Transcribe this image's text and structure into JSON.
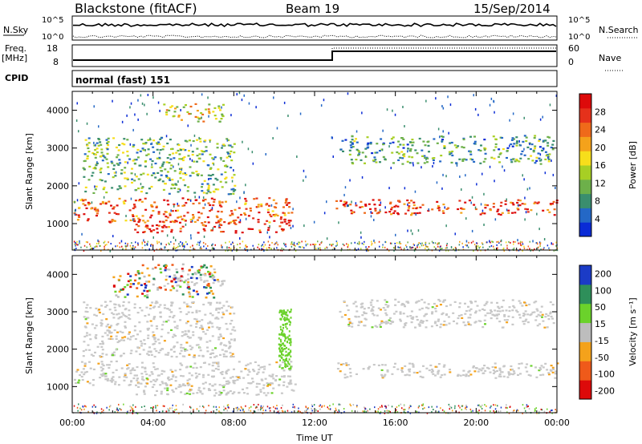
{
  "header": {
    "station": "Blackstone (fitACF)",
    "beam": "Beam 19",
    "date": "15/Sep/2014"
  },
  "top_panel": {
    "left_label": "N.Sky",
    "left_ticks": [
      "10^5",
      "10^0"
    ],
    "right_ticks": [
      "10^5",
      "10^0"
    ],
    "right_label": "N.Search"
  },
  "freq_panel": {
    "left_label_1": "Freq.",
    "left_label_2": "[MHz]",
    "left_ticks": [
      "18",
      "8"
    ],
    "right_ticks": [
      "60",
      "0"
    ],
    "right_label": "Nave",
    "cpid_label": "CPID",
    "mode": "normal (fast) 151"
  },
  "colors": {
    "scale": [
      "#0a2bd6",
      "#2468c6",
      "#3a8e6e",
      "#6db04a",
      "#a7cf24",
      "#f7de1b",
      "#f4a21b",
      "#ef6a1a",
      "#e5311b",
      "#dd0a0a"
    ],
    "velocity": [
      "#dd0a0a",
      "#ef5a1a",
      "#f4a21b",
      "#bdbdbd",
      "#6bd22b",
      "#2e8f5a",
      "#1b3bc6"
    ],
    "ground": "#c8c8c8"
  },
  "chart_data": [
    {
      "type": "heatmap",
      "name": "power",
      "ylabel": "Slant Range [km]",
      "yticks": [
        "1000",
        "2000",
        "3000",
        "4000"
      ],
      "ylim": [
        300,
        4500
      ],
      "xlim": [
        0,
        24
      ],
      "colorbar_label": "Power [dB]",
      "colorbar_ticks": [
        "4",
        "8",
        "12",
        "16",
        "20",
        "24",
        "28"
      ],
      "features": [
        {
          "t0": 0.0,
          "t1": 10.9,
          "r0": 1050,
          "r1": 1700,
          "level": 0.78
        },
        {
          "t0": 3.0,
          "t1": 11.0,
          "r0": 780,
          "r1": 1120,
          "level": 0.9
        },
        {
          "t0": 13.0,
          "t1": 24.0,
          "r0": 1250,
          "r1": 1650,
          "level": 0.85
        },
        {
          "t0": 0.5,
          "t1": 8.0,
          "r0": 1800,
          "r1": 3300,
          "level": 0.35
        },
        {
          "t0": 13.2,
          "t1": 23.8,
          "r0": 2600,
          "r1": 3350,
          "level": 0.3
        },
        {
          "t0": 4.5,
          "t1": 7.5,
          "r0": 3700,
          "r1": 4200,
          "level": 0.55
        }
      ]
    },
    {
      "type": "heatmap",
      "name": "velocity",
      "ylabel": "Slant Range [km]",
      "xlabel": "Time UT",
      "yticks": [
        "1000",
        "2000",
        "3000",
        "4000"
      ],
      "ylim": [
        300,
        4500
      ],
      "xlim": [
        0,
        24
      ],
      "xticks": [
        "00:00",
        "04:00",
        "08:00",
        "12:00",
        "16:00",
        "20:00",
        "00:00"
      ],
      "colorbar_label": "Velocity [m s⁻¹]",
      "colorbar_ticks": [
        "200",
        "100",
        "50",
        "15",
        "-15",
        "-50",
        "-100",
        "-200"
      ]
    }
  ]
}
